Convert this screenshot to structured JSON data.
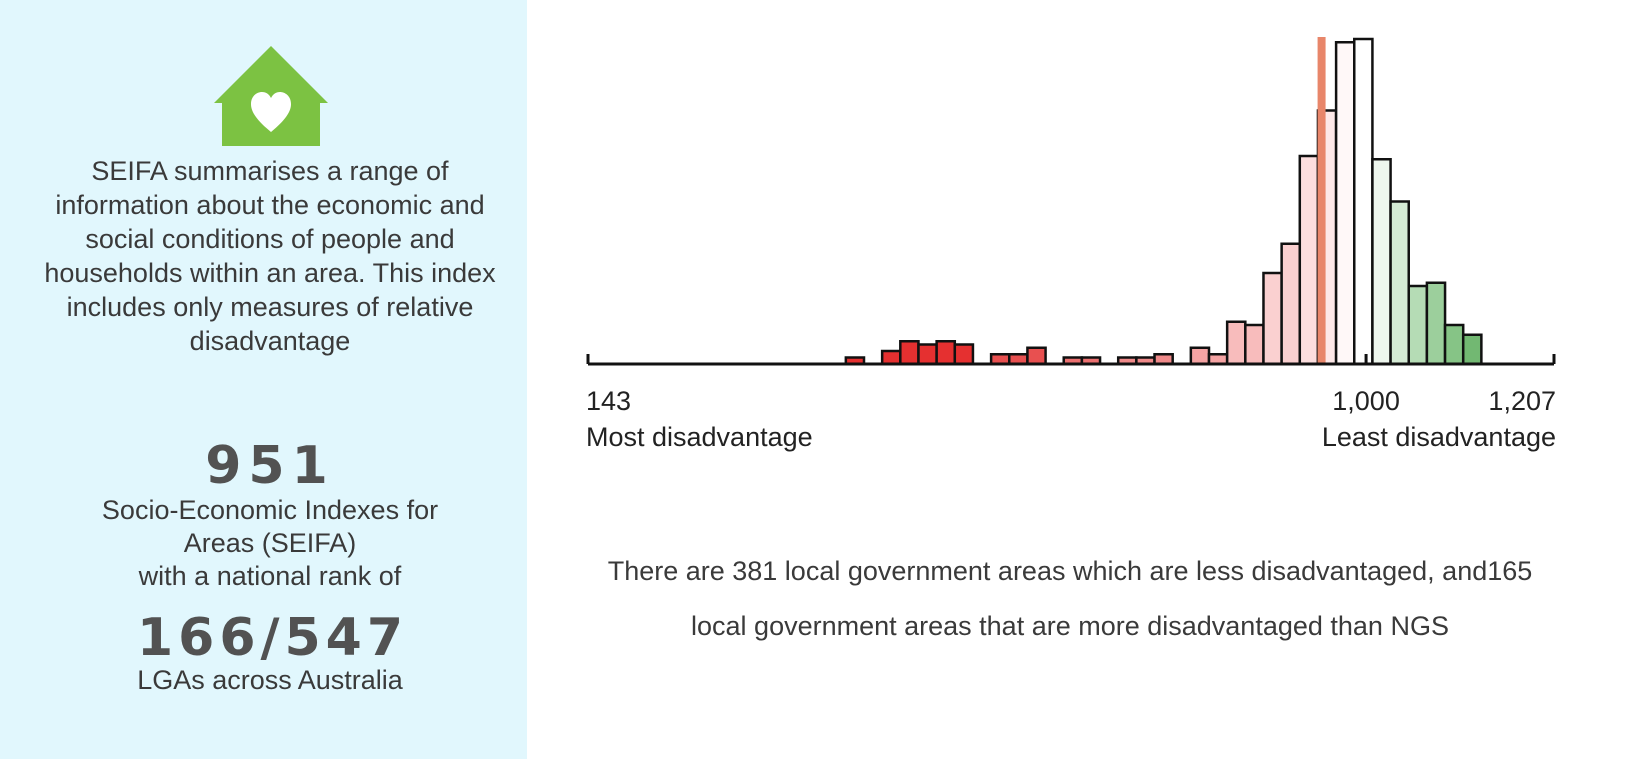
{
  "icon": {
    "name": "house-heart-icon",
    "color": "#7cc242"
  },
  "intro_text": "SEIFA summarises a range of information about the economic and social conditions of people and households within an area. This index includes only measures of relative disadvantage",
  "score": {
    "value": "951",
    "description_lines": [
      "Socio-Economic Indexes for",
      "Areas (SEIFA)",
      "with a national rank of"
    ]
  },
  "rank": {
    "value": "166/547",
    "description": "LGAs across Australia"
  },
  "summary_text": "There are 381 local government areas which are less disadvantaged, and165 local government areas that are more disadvantaged than NGS",
  "chart_data": {
    "type": "bar",
    "xlim": [
      143,
      1207
    ],
    "tick_labels": [
      {
        "value": 143,
        "label": "143",
        "sublabel": "Most disadvantage"
      },
      {
        "value": 1000,
        "label": "1,000"
      },
      {
        "value": 1207,
        "label": "1,207",
        "sublabel": "Least disadvantage"
      }
    ],
    "marker": {
      "value": 951,
      "color": "#e8866a"
    },
    "ylim": [
      0,
      100
    ],
    "bins": [
      {
        "x0": 427,
        "x1": 447,
        "count": 2,
        "color": "#e53030"
      },
      {
        "x0": 467,
        "x1": 487,
        "count": 4,
        "color": "#e53030"
      },
      {
        "x0": 487,
        "x1": 507,
        "count": 7,
        "color": "#e53030"
      },
      {
        "x0": 507,
        "x1": 527,
        "count": 6,
        "color": "#e53030"
      },
      {
        "x0": 527,
        "x1": 547,
        "count": 7,
        "color": "#e53030"
      },
      {
        "x0": 547,
        "x1": 567,
        "count": 6,
        "color": "#e53030"
      },
      {
        "x0": 587,
        "x1": 607,
        "count": 3,
        "color": "#e85050"
      },
      {
        "x0": 607,
        "x1": 627,
        "count": 3,
        "color": "#e85050"
      },
      {
        "x0": 627,
        "x1": 647,
        "count": 5,
        "color": "#e85050"
      },
      {
        "x0": 667,
        "x1": 687,
        "count": 2,
        "color": "#ec7070"
      },
      {
        "x0": 687,
        "x1": 707,
        "count": 2,
        "color": "#ec7070"
      },
      {
        "x0": 727,
        "x1": 747,
        "count": 2,
        "color": "#f08a8a"
      },
      {
        "x0": 747,
        "x1": 767,
        "count": 2,
        "color": "#f08a8a"
      },
      {
        "x0": 767,
        "x1": 787,
        "count": 3,
        "color": "#f08a8a"
      },
      {
        "x0": 807,
        "x1": 827,
        "count": 5,
        "color": "#f5a3a3"
      },
      {
        "x0": 827,
        "x1": 847,
        "count": 3,
        "color": "#f5a3a3"
      },
      {
        "x0": 847,
        "x1": 867,
        "count": 13,
        "color": "#f8bcbc"
      },
      {
        "x0": 867,
        "x1": 887,
        "count": 12,
        "color": "#f8bcbc"
      },
      {
        "x0": 887,
        "x1": 907,
        "count": 28,
        "color": "#fad0d0"
      },
      {
        "x0": 907,
        "x1": 927,
        "count": 37,
        "color": "#fad0d0"
      },
      {
        "x0": 927,
        "x1": 947,
        "count": 64,
        "color": "#fcdede"
      },
      {
        "x0": 947,
        "x1": 967,
        "count": 78,
        "color": "#fde8e8"
      },
      {
        "x0": 967,
        "x1": 987,
        "count": 99,
        "color": "#fff8f8"
      },
      {
        "x0": 987,
        "x1": 1007,
        "count": 100,
        "color": "#ffffff"
      },
      {
        "x0": 1007,
        "x1": 1027,
        "count": 63,
        "color": "#eef7ee"
      },
      {
        "x0": 1027,
        "x1": 1047,
        "count": 50,
        "color": "#d5ebd5"
      },
      {
        "x0": 1047,
        "x1": 1067,
        "count": 24,
        "color": "#b5dcb5"
      },
      {
        "x0": 1067,
        "x1": 1087,
        "count": 25,
        "color": "#9ccf9c"
      },
      {
        "x0": 1087,
        "x1": 1107,
        "count": 12,
        "color": "#86c486"
      },
      {
        "x0": 1107,
        "x1": 1127,
        "count": 9,
        "color": "#72b872"
      }
    ]
  }
}
